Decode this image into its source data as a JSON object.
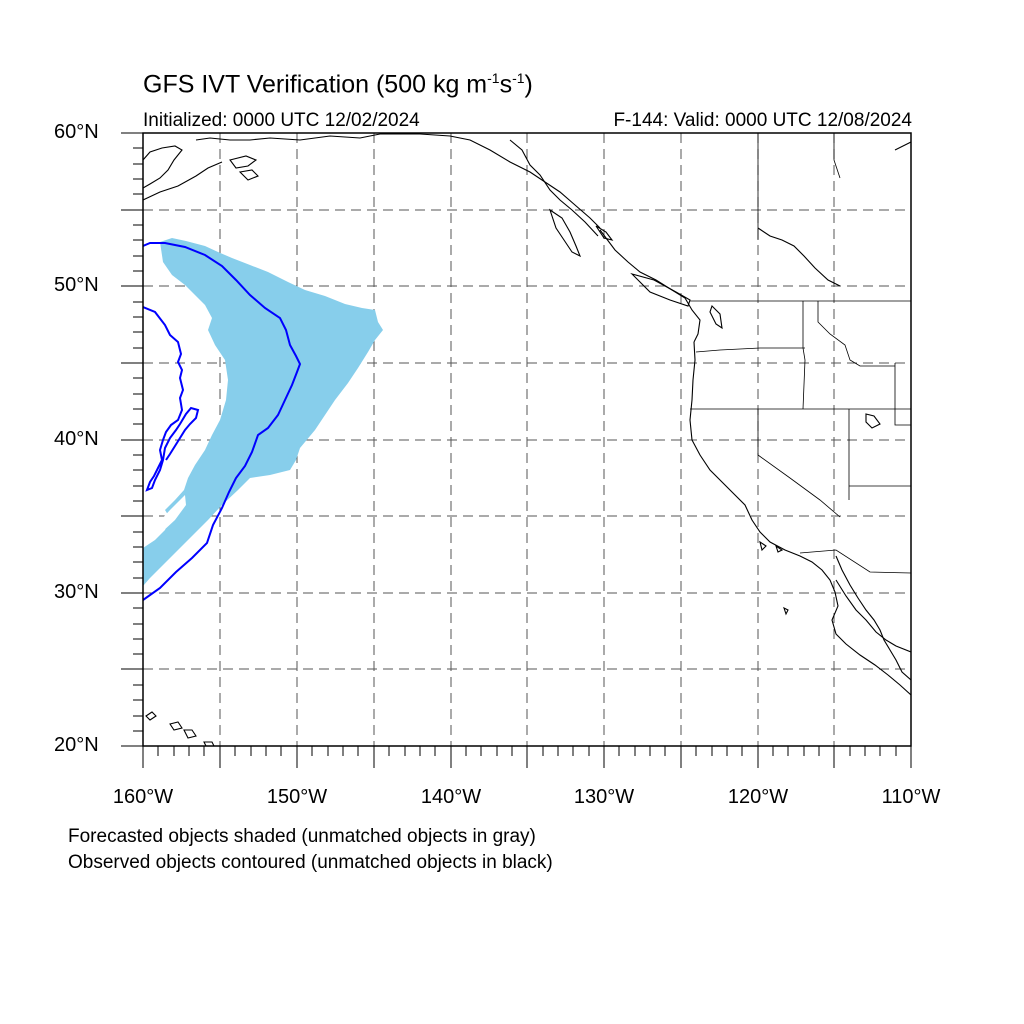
{
  "title": {
    "prefix": "GFS IVT Verification (500 kg m",
    "sup1": "-1",
    "mid": "s",
    "sup2": "-1",
    "suffix": ")"
  },
  "initialized": "Initialized: 0000 UTC 12/02/2024",
  "valid": "F-144: Valid: 0000 UTC 12/08/2024",
  "axes": {
    "lat_labels": [
      "60°N",
      "50°N",
      "40°N",
      "30°N",
      "20°N"
    ],
    "lon_labels": [
      "160°W",
      "150°W",
      "140°W",
      "130°W",
      "120°W",
      "110°W"
    ],
    "lat_range": [
      20,
      60
    ],
    "lon_range": [
      -160,
      -110
    ],
    "grid": "dashed, every 5 degrees"
  },
  "notes": {
    "forecast": "Forecasted objects shaded (unmatched objects in gray)",
    "observed": "Observed objects contoured (unmatched objects in black)"
  },
  "colors": {
    "forecast_fill": "#87ceeb",
    "observed_contour": "#0000ff",
    "coastline": "#000000",
    "grid": "#555555"
  }
}
